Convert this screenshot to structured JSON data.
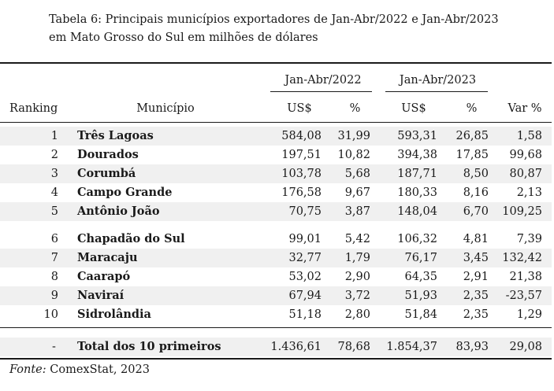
{
  "caption": {
    "line1": "Tabela 6: Principais municípios exportadores de Jan-Abr/2022 e Jan-Abr/2023",
    "line2": "em Mato Grosso do Sul em milhões de dólares"
  },
  "header": {
    "group_2022": "Jan-Abr/2022",
    "group_2023": "Jan-Abr/2023",
    "ranking": "Ranking",
    "municipio": "Município",
    "usd_2022": "US$",
    "pct_2022": "%",
    "usd_2023": "US$",
    "pct_2023": "%",
    "var": "Var %"
  },
  "rows": [
    {
      "rank": "1",
      "name": "Três Lagoas",
      "usd22": "584,08",
      "pct22": "31,99",
      "usd23": "593,31",
      "pct23": "26,85",
      "var": "1,58"
    },
    {
      "rank": "2",
      "name": "Dourados",
      "usd22": "197,51",
      "pct22": "10,82",
      "usd23": "394,38",
      "pct23": "17,85",
      "var": "99,68"
    },
    {
      "rank": "3",
      "name": "Corumbá",
      "usd22": "103,78",
      "pct22": "5,68",
      "usd23": "187,71",
      "pct23": "8,50",
      "var": "80,87"
    },
    {
      "rank": "4",
      "name": "Campo Grande",
      "usd22": "176,58",
      "pct22": "9,67",
      "usd23": "180,33",
      "pct23": "8,16",
      "var": "2,13"
    },
    {
      "rank": "5",
      "name": "Antônio João",
      "usd22": "70,75",
      "pct22": "3,87",
      "usd23": "148,04",
      "pct23": "6,70",
      "var": "109,25"
    },
    {
      "rank": "6",
      "name": "Chapadão do Sul",
      "usd22": "99,01",
      "pct22": "5,42",
      "usd23": "106,32",
      "pct23": "4,81",
      "var": "7,39"
    },
    {
      "rank": "7",
      "name": "Maracaju",
      "usd22": "32,77",
      "pct22": "1,79",
      "usd23": "76,17",
      "pct23": "3,45",
      "var": "132,42"
    },
    {
      "rank": "8",
      "name": "Caarapó",
      "usd22": "53,02",
      "pct22": "2,90",
      "usd23": "64,35",
      "pct23": "2,91",
      "var": "21,38"
    },
    {
      "rank": "9",
      "name": "Naviraí",
      "usd22": "67,94",
      "pct22": "3,72",
      "usd23": "51,93",
      "pct23": "2,35",
      "var": "-23,57"
    },
    {
      "rank": "10",
      "name": "Sidrolândia",
      "usd22": "51,18",
      "pct22": "2,80",
      "usd23": "51,84",
      "pct23": "2,35",
      "var": "1,29"
    }
  ],
  "total": {
    "rank": "-",
    "name": "Total dos 10 primeiros",
    "usd22": "1.436,61",
    "pct22": "78,68",
    "usd23": "1.854,37",
    "pct23": "83,93",
    "var": "29,08"
  },
  "source": {
    "label": "Fonte:",
    "text": "ComexStat, 2023"
  }
}
